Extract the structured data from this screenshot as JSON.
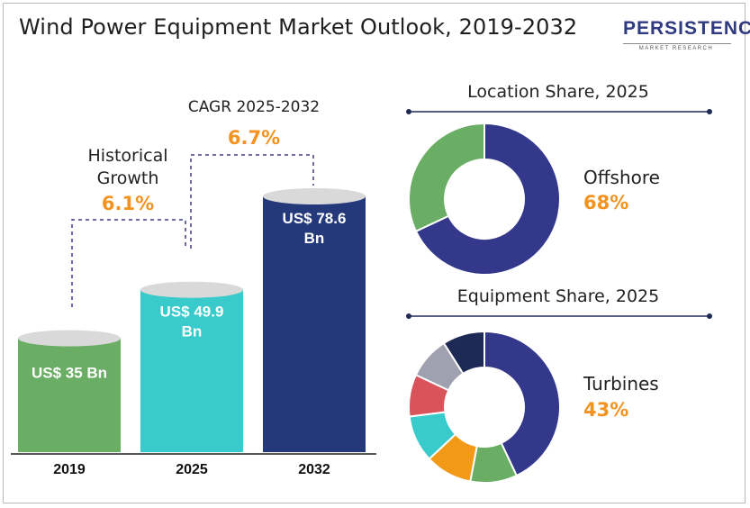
{
  "title": "Wind Power Equipment Market Outlook, 2019-2032",
  "logo": {
    "name": "PERSISTENCE",
    "tagline": "MARKET RESEARCH"
  },
  "colors": {
    "green": "#6aad64",
    "green_top": "#d6d6d6",
    "teal": "#39cbcb",
    "navy": "#24397a",
    "donut_navy": "#34388a",
    "orange_accent": "#f3931f",
    "eq_navy": "#34388a",
    "eq_green": "#6aad64",
    "eq_orange": "#f29a17",
    "eq_teal": "#39cbcb",
    "eq_red": "#d9545a",
    "eq_gray": "#9fa0b0",
    "eq_darknavy": "#1c2a55"
  },
  "annotations": {
    "historical_label_line1": "Historical",
    "historical_label_line2": "Growth",
    "historical_value": "6.1%",
    "cagr_label": "CAGR 2025-2032",
    "cagr_value": "6.7%"
  },
  "chart_data": [
    {
      "type": "bar",
      "categories": [
        "2019",
        "2025",
        "2032"
      ],
      "values": [
        35,
        49.9,
        78.6
      ],
      "value_labels": [
        [
          "US$ 35 Bn"
        ],
        [
          "US$ 49.9",
          "Bn"
        ],
        [
          "US$ 78.6",
          "Bn"
        ]
      ],
      "unit": "US$ Bn"
    },
    {
      "type": "pie",
      "title": "Location Share, 2025",
      "highlight_label": "Offshore",
      "highlight_value": "68%",
      "slices": [
        {
          "name": "Offshore",
          "value": 68,
          "color": "#34388a"
        },
        {
          "name": "",
          "value": 32,
          "color": "#6aad64"
        }
      ]
    },
    {
      "type": "pie",
      "title": "Equipment Share, 2025",
      "highlight_label": "Turbines",
      "highlight_value": "43%",
      "slices": [
        {
          "name": "Turbines",
          "value": 43,
          "color": "#34388a"
        },
        {
          "name": "",
          "value": 10,
          "color": "#6aad64"
        },
        {
          "name": "",
          "value": 10,
          "color": "#f29a17"
        },
        {
          "name": "",
          "value": 10,
          "color": "#39cbcb"
        },
        {
          "name": "",
          "value": 9,
          "color": "#d9545a"
        },
        {
          "name": "",
          "value": 9,
          "color": "#9fa0b0"
        },
        {
          "name": "",
          "value": 9,
          "color": "#1c2a55"
        }
      ]
    }
  ]
}
